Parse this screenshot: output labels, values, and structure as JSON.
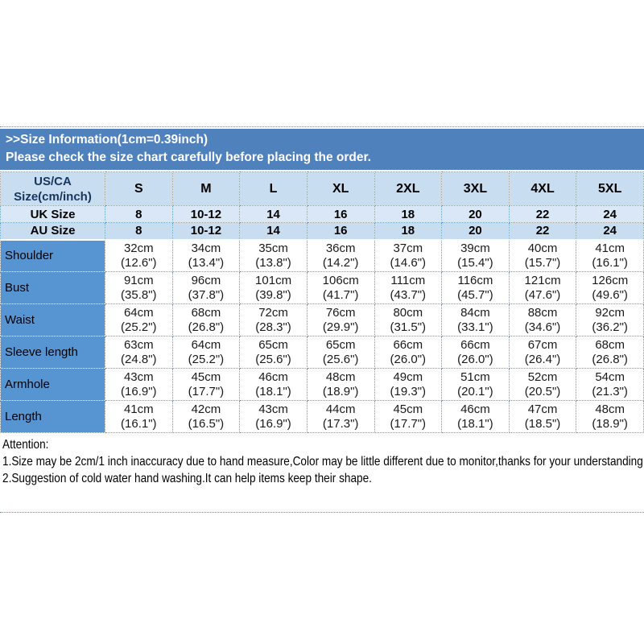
{
  "banner": {
    "line1": ">>Size Information(1cm=0.39inch)",
    "line2": "Please check the size chart carefully before placing the order."
  },
  "table": {
    "corner_label_line1": "US/CA",
    "corner_label_line2": "Size(cm/inch)",
    "sizes": [
      "S",
      "M",
      "L",
      "XL",
      "2XL",
      "3XL",
      "4XL",
      "5XL"
    ],
    "region_rows": [
      {
        "label": "UK Size",
        "values": [
          "8",
          "10-12",
          "14",
          "16",
          "18",
          "20",
          "22",
          "24"
        ]
      },
      {
        "label": "AU Size",
        "values": [
          "8",
          "10-12",
          "14",
          "16",
          "18",
          "20",
          "22",
          "24"
        ]
      }
    ],
    "measurement_rows": [
      {
        "label": "Shoulder",
        "cm": [
          "32cm",
          "34cm",
          "35cm",
          "36cm",
          "37cm",
          "39cm",
          "40cm",
          "41cm"
        ],
        "inch": [
          "(12.6\")",
          "(13.4\")",
          "(13.8\")",
          "(14.2\")",
          "(14.6\")",
          "(15.4\")",
          "(15.7\")",
          "(16.1\")"
        ]
      },
      {
        "label": "Bust",
        "cm": [
          "91cm",
          "96cm",
          "101cm",
          "106cm",
          "111cm",
          "116cm",
          "121cm",
          "126cm"
        ],
        "inch": [
          "(35.8\")",
          "(37.8\")",
          "(39.8\")",
          "(41.7\")",
          "(43.7\")",
          "(45.7\")",
          "(47.6\")",
          "(49.6\")"
        ]
      },
      {
        "label": "Waist",
        "cm": [
          "64cm",
          "68cm",
          "72cm",
          "76cm",
          "80cm",
          "84cm",
          "88cm",
          "92cm"
        ],
        "inch": [
          "(25.2\")",
          "(26.8\")",
          "(28.3\")",
          "(29.9\")",
          "(31.5\")",
          "(33.1\")",
          "(34.6\")",
          "(36.2\")"
        ]
      },
      {
        "label": "Sleeve length",
        "cm": [
          "63cm",
          "64cm",
          "65cm",
          "65cm",
          "66cm",
          "66cm",
          "67cm",
          "68cm"
        ],
        "inch": [
          "(24.8\")",
          "(25.2\")",
          "(25.6\")",
          "(25.6\")",
          "(26.0\")",
          "(26.0\")",
          "(26.4\")",
          "(26.8\")"
        ]
      },
      {
        "label": "Armhole",
        "cm": [
          "43cm",
          "45cm",
          "46cm",
          "48cm",
          "49cm",
          "51cm",
          "52cm",
          "54cm"
        ],
        "inch": [
          "(16.9\")",
          "(17.7\")",
          "(18.1\")",
          "(18.9\")",
          "(19.3\")",
          "(20.1\")",
          "(20.5\")",
          "(21.3\")"
        ]
      },
      {
        "label": "Length",
        "cm": [
          "41cm",
          "42cm",
          "43cm",
          "44cm",
          "45cm",
          "46cm",
          "47cm",
          "48cm"
        ],
        "inch": [
          "(16.1\")",
          "(16.5\")",
          "(16.9\")",
          "(17.3\")",
          "(17.7\")",
          "(18.1\")",
          "(18.5\")",
          "(18.9\")"
        ]
      }
    ]
  },
  "attention": {
    "heading": "Attention:",
    "line1": "1.Size may be 2cm/1 inch inaccuracy due to hand measure,Color may be little different due to monitor,thanks for your understanding!",
    "line2": "2.Suggestion of cold water hand washing.It can help items keep their shape."
  },
  "colors": {
    "banner_bg": "#4f81bd",
    "header_row_bg": "#c9ddf1",
    "uk_row_bg": "#d9e7f6",
    "au_row_bg": "#c9ddf1",
    "measure_label_bg": "#5794d2",
    "grid_dot": "#6f9bc9",
    "header_text": "#17365d",
    "separator_dot": "#6d9193"
  },
  "chart_data": {
    "type": "table",
    "title": ">>Size Information(1cm=0.39inch)",
    "subtitle": "Please check the size chart carefully before placing the order.",
    "columns": [
      "US/CA Size(cm/inch)",
      "S",
      "M",
      "L",
      "XL",
      "2XL",
      "3XL",
      "4XL",
      "5XL"
    ],
    "rows": [
      [
        "UK Size",
        "8",
        "10-12",
        "14",
        "16",
        "18",
        "20",
        "22",
        "24"
      ],
      [
        "AU Size",
        "8",
        "10-12",
        "14",
        "16",
        "18",
        "20",
        "22",
        "24"
      ],
      [
        "Shoulder",
        "32cm (12.6\")",
        "34cm (13.4\")",
        "35cm (13.8\")",
        "36cm (14.2\")",
        "37cm (14.6\")",
        "39cm (15.4\")",
        "40cm (15.7\")",
        "41cm (16.1\")"
      ],
      [
        "Bust",
        "91cm (35.8\")",
        "96cm (37.8\")",
        "101cm (39.8\")",
        "106cm (41.7\")",
        "111cm (43.7\")",
        "116cm (45.7\")",
        "121cm (47.6\")",
        "126cm (49.6\")"
      ],
      [
        "Waist",
        "64cm (25.2\")",
        "68cm (26.8\")",
        "72cm (28.3\")",
        "76cm (29.9\")",
        "80cm (31.5\")",
        "84cm (33.1\")",
        "88cm (34.6\")",
        "92cm (36.2\")"
      ],
      [
        "Sleeve length",
        "63cm (24.8\")",
        "64cm (25.2\")",
        "65cm (25.6\")",
        "65cm (25.6\")",
        "66cm (26.0\")",
        "66cm (26.0\")",
        "67cm (26.4\")",
        "68cm (26.8\")"
      ],
      [
        "Armhole",
        "43cm (16.9\")",
        "45cm (17.7\")",
        "46cm (18.1\")",
        "48cm (18.9\")",
        "49cm (19.3\")",
        "51cm (20.1\")",
        "52cm (20.5\")",
        "54cm (21.3\")"
      ],
      [
        "Length",
        "41cm (16.1\")",
        "42cm (16.5\")",
        "43cm (16.9\")",
        "44cm (17.3\")",
        "45cm (17.7\")",
        "46cm (18.1\")",
        "47cm (18.5\")",
        "48cm (18.9\")"
      ]
    ]
  }
}
